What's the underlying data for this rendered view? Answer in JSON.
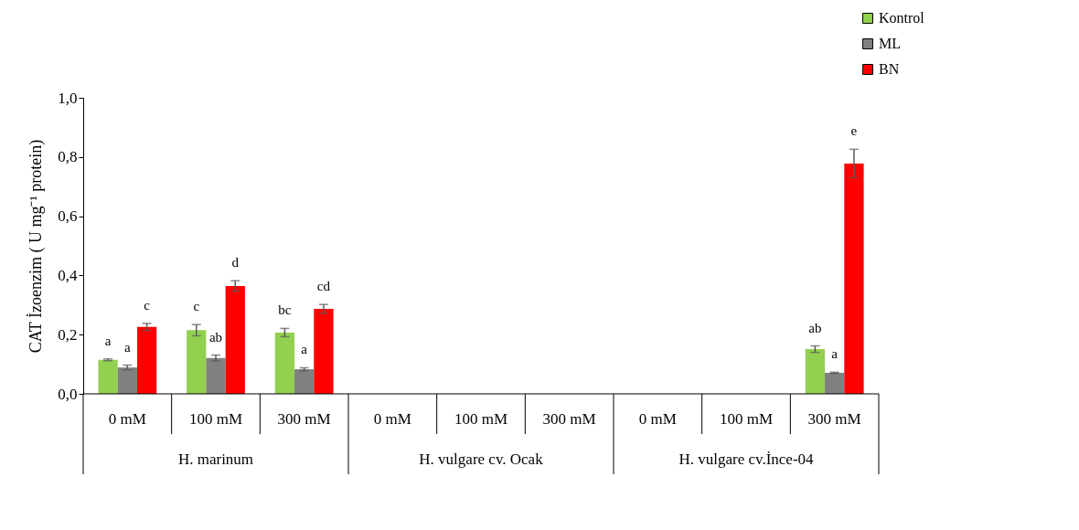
{
  "chart_data": {
    "type": "bar",
    "ylabel": "CAT İzoenzim ( U mg⁻¹ protein)",
    "categories": [
      "0 mM",
      "100 mM",
      "300 mM",
      "0 mM",
      "100 mM",
      "300 mM",
      "0 mM",
      "100 mM",
      "300 mM"
    ],
    "annotations": [
      "H. marinum",
      "H. vulgare cv. Ocak",
      "H. vulgare cv.İnce-04"
    ],
    "series": [
      {
        "name": "Kontrol",
        "color": "#92d050",
        "values": [
          0.115,
          0.215,
          0.207,
          null,
          null,
          null,
          null,
          null,
          0.151
        ],
        "errors": [
          0.003,
          0.019,
          0.014,
          null,
          null,
          null,
          null,
          null,
          0.011
        ],
        "value_labels": [
          "a",
          "c",
          "bc",
          null,
          null,
          null,
          null,
          null,
          "ab"
        ]
      },
      {
        "name": "ML",
        "color": "#808080",
        "values": [
          0.089,
          0.121,
          0.083,
          null,
          null,
          null,
          null,
          null,
          0.071
        ],
        "errors": [
          0.008,
          0.01,
          0.005,
          null,
          null,
          null,
          null,
          null,
          0.002
        ],
        "value_labels": [
          "a",
          "ab",
          "a",
          null,
          null,
          null,
          null,
          null,
          "a"
        ]
      },
      {
        "name": "BN",
        "color": "#ff0000",
        "values": [
          0.226,
          0.364,
          0.287,
          null,
          null,
          null,
          null,
          null,
          0.778
        ],
        "errors": [
          0.012,
          0.018,
          0.015,
          null,
          null,
          null,
          null,
          null,
          0.048
        ],
        "value_labels": [
          "c",
          "d",
          "cd",
          null,
          null,
          null,
          null,
          null,
          "e"
        ]
      }
    ],
    "ylim": [
      0,
      1.0
    ],
    "yticks": [
      {
        "value": 0,
        "label": "0,0"
      },
      {
        "value": 0.2,
        "label": "0,2"
      },
      {
        "value": 0.4,
        "label": "0,4"
      },
      {
        "value": 0.6,
        "label": "0,6"
      },
      {
        "value": 0.8,
        "label": "0,8"
      },
      {
        "value": 1.0,
        "label": "1,0"
      }
    ],
    "legend": "top right",
    "grid": false
  }
}
